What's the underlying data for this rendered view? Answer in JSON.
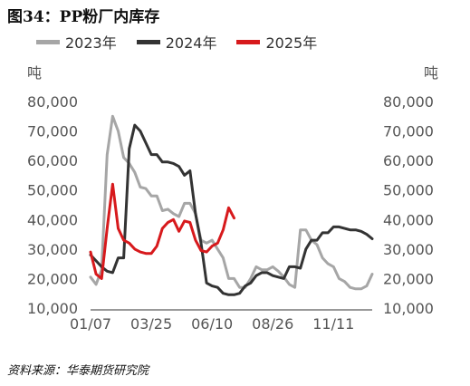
{
  "chart_data": {
    "type": "line",
    "title": "图34：PP粉厂内库存",
    "ylabel": "吨",
    "ylabel_right": "吨",
    "ylim": [
      10000,
      80000
    ],
    "y_ticks": [
      "80,000",
      "70,000",
      "60,000",
      "50,000",
      "40,000",
      "30,000",
      "20,000",
      "10,000"
    ],
    "y_tick_values": [
      80000,
      70000,
      60000,
      50000,
      40000,
      30000,
      20000,
      10000
    ],
    "xlim": [
      1,
      52
    ],
    "x_tick_labels": [
      "01/07",
      "03/25",
      "06/10",
      "08/26",
      "11/11"
    ],
    "x_tick_positions": [
      1,
      12,
      23,
      34,
      45
    ],
    "grid": false,
    "legend": "top",
    "series": [
      {
        "name": "2023年",
        "color": "#a6a6a6",
        "x": [
          1,
          2,
          3,
          4,
          5,
          6,
          7,
          8,
          9,
          10,
          11,
          12,
          13,
          14,
          15,
          16,
          17,
          18,
          19,
          20,
          21,
          22,
          23,
          24,
          25,
          26,
          27,
          28,
          29,
          30,
          31,
          32,
          33,
          34,
          35,
          36,
          37,
          38,
          39,
          40,
          41,
          42,
          43,
          44,
          45,
          46,
          47,
          48,
          49,
          50,
          51,
          52
        ],
        "values": [
          20500,
          18000,
          23000,
          62000,
          75000,
          70000,
          61000,
          59000,
          56000,
          51000,
          50500,
          48000,
          48000,
          43000,
          43500,
          42000,
          41000,
          45500,
          45500,
          42000,
          33000,
          32000,
          33000,
          30000,
          27000,
          20000,
          20000,
          17000,
          17000,
          20000,
          24000,
          23000,
          23000,
          24000,
          22500,
          20500,
          18000,
          17000,
          36500,
          36500,
          33000,
          31500,
          27000,
          25000,
          24000,
          20000,
          19000,
          17000,
          16500,
          16500,
          17500,
          21500
        ]
      },
      {
        "name": "2024年",
        "color": "#333333",
        "x": [
          1,
          2,
          3,
          4,
          5,
          6,
          7,
          8,
          9,
          10,
          11,
          12,
          13,
          14,
          15,
          16,
          17,
          18,
          19,
          20,
          21,
          22,
          23,
          24,
          25,
          26,
          27,
          28,
          29,
          30,
          31,
          32,
          33,
          34,
          35,
          36,
          37,
          38,
          39,
          40,
          41,
          42,
          43,
          44,
          45,
          46,
          47,
          48,
          49,
          50,
          51,
          52
        ],
        "values": [
          28000,
          26000,
          24000,
          22500,
          22000,
          27000,
          27000,
          64000,
          72000,
          70000,
          66000,
          62000,
          62000,
          59500,
          59500,
          59000,
          58000,
          55000,
          56500,
          42000,
          32000,
          18500,
          17500,
          17000,
          15000,
          14500,
          14500,
          15000,
          17500,
          18500,
          21000,
          22000,
          22000,
          21000,
          20500,
          20000,
          24000,
          24000,
          23500,
          30000,
          33000,
          33000,
          35500,
          35500,
          37500,
          37500,
          37000,
          36500,
          36500,
          36000,
          35000,
          33500
        ]
      },
      {
        "name": "2025年",
        "color": "#d7191c",
        "x": [
          1,
          2,
          3,
          4,
          5,
          6,
          7,
          8,
          9,
          10,
          11,
          12,
          13,
          14,
          15,
          16,
          17,
          18,
          19,
          20,
          21,
          22,
          23,
          24,
          25,
          26,
          27
        ],
        "values": [
          29000,
          21500,
          20000,
          37000,
          52000,
          37000,
          33000,
          32000,
          30000,
          29000,
          28500,
          28500,
          31000,
          37000,
          39000,
          40000,
          36000,
          39500,
          39000,
          33000,
          29500,
          29000,
          31000,
          32000,
          36500,
          44000,
          40500
        ]
      }
    ]
  },
  "source_note": "资料来源：华泰期货研究院"
}
